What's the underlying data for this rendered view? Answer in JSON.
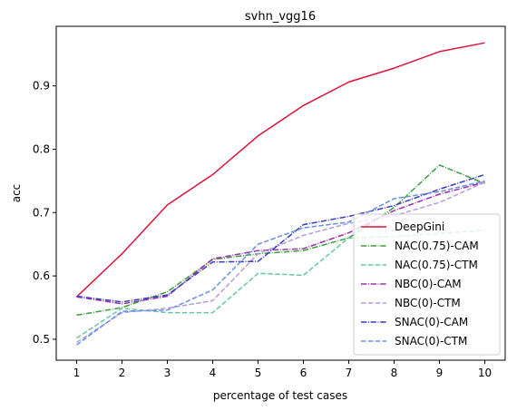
{
  "chart_data": {
    "type": "line",
    "title": "svhn_vgg16",
    "xlabel": "percentage of test cases",
    "ylabel": "acc",
    "x": [
      1,
      2,
      3,
      4,
      5,
      6,
      7,
      8,
      9,
      10
    ],
    "xlim": [
      0.55,
      10.45
    ],
    "ylim": [
      0.467,
      0.994
    ],
    "xticks": [
      "1",
      "2",
      "3",
      "4",
      "5",
      "6",
      "7",
      "8",
      "9",
      "10"
    ],
    "yticks": [
      "0.5",
      "0.6",
      "0.7",
      "0.8",
      "0.9"
    ],
    "grid": false,
    "legend_position": "lower-right",
    "series": [
      {
        "name": "DeepGini",
        "color": "#dc143c",
        "dash": "solid",
        "values": [
          0.567,
          0.635,
          0.712,
          0.76,
          0.821,
          0.869,
          0.906,
          0.928,
          0.954,
          0.968
        ]
      },
      {
        "name": "NAC(0.75)-CAM",
        "color": "#3a9e3a",
        "dash": "dashdot",
        "values": [
          0.538,
          0.55,
          0.575,
          0.626,
          0.635,
          0.64,
          0.66,
          0.708,
          0.775,
          0.746
        ]
      },
      {
        "name": "NAC(0.75)-CTM",
        "color": "#66c8a0",
        "dash": "dashed",
        "values": [
          0.502,
          0.549,
          0.542,
          0.542,
          0.604,
          0.601,
          0.66,
          0.662,
          0.667,
          0.672
        ]
      },
      {
        "name": "NBC(0)-CAM",
        "color": "#9b30a8",
        "dash": "dashdot",
        "values": [
          0.567,
          0.556,
          0.568,
          0.627,
          0.64,
          0.643,
          0.668,
          0.703,
          0.729,
          0.748
        ]
      },
      {
        "name": "NBC(0)-CTM",
        "color": "#b39ddb",
        "dash": "dashed",
        "values": [
          0.495,
          0.542,
          0.549,
          0.561,
          0.635,
          0.664,
          0.683,
          0.695,
          0.716,
          0.748
        ]
      },
      {
        "name": "SNAC(0)-CAM",
        "color": "#3b3bbf",
        "dash": "dashdot",
        "values": [
          0.568,
          0.559,
          0.57,
          0.622,
          0.623,
          0.681,
          0.694,
          0.711,
          0.737,
          0.76
        ]
      },
      {
        "name": "SNAC(0)-CTM",
        "color": "#6a8fe6",
        "dash": "dashed",
        "values": [
          0.491,
          0.544,
          0.546,
          0.578,
          0.65,
          0.676,
          0.685,
          0.722,
          0.733,
          0.75
        ]
      }
    ]
  }
}
